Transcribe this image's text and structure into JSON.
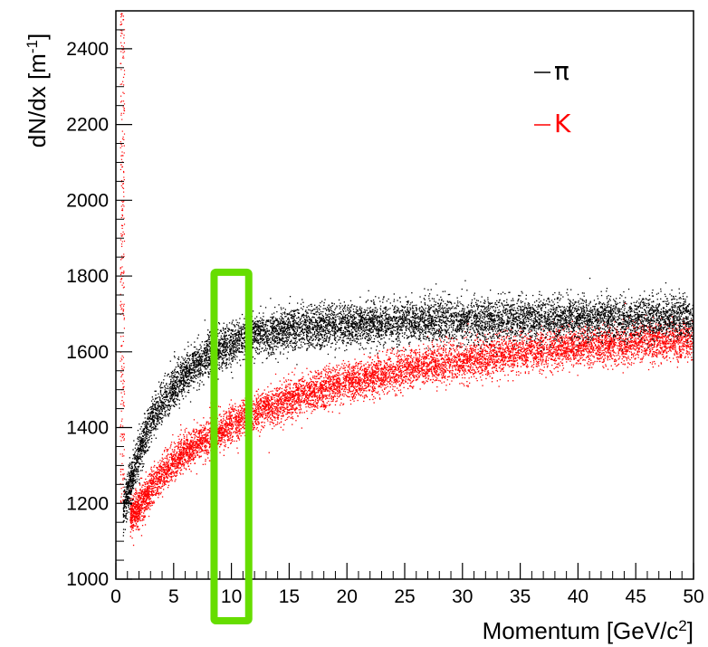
{
  "chart_data": {
    "type": "scatter",
    "title": "",
    "xlabel": "Momentum [GeV/c^2]",
    "ylabel": "dN/dx [m^-1]",
    "xlim": [
      0,
      50
    ],
    "ylim": [
      1000,
      2500
    ],
    "x_ticks": [
      0,
      5,
      10,
      15,
      20,
      25,
      30,
      35,
      40,
      45,
      50
    ],
    "y_ticks": [
      1000,
      1200,
      1400,
      1600,
      1800,
      2000,
      2200,
      2400
    ],
    "legend_position": "top-right",
    "grid": false,
    "series": [
      {
        "name": "π",
        "color": "#000000",
        "band_center": [
          [
            0.6,
            1185
          ],
          [
            1,
            1230
          ],
          [
            2,
            1340
          ],
          [
            3,
            1420
          ],
          [
            4,
            1470
          ],
          [
            5,
            1510
          ],
          [
            6,
            1545
          ],
          [
            7,
            1570
          ],
          [
            8,
            1595
          ],
          [
            10,
            1625
          ],
          [
            12,
            1645
          ],
          [
            15,
            1660
          ],
          [
            20,
            1672
          ],
          [
            25,
            1680
          ],
          [
            30,
            1685
          ],
          [
            35,
            1688
          ],
          [
            40,
            1690
          ],
          [
            45,
            1692
          ],
          [
            50,
            1693
          ]
        ],
        "band_halfwidth": 50
      },
      {
        "name": "K",
        "color": "#ff0000",
        "band_center": [
          [
            1.2,
            1170
          ],
          [
            2,
            1190
          ],
          [
            3,
            1240
          ],
          [
            4,
            1280
          ],
          [
            5,
            1310
          ],
          [
            6,
            1340
          ],
          [
            8,
            1375
          ],
          [
            10,
            1410
          ],
          [
            12,
            1440
          ],
          [
            15,
            1475
          ],
          [
            20,
            1520
          ],
          [
            25,
            1555
          ],
          [
            30,
            1580
          ],
          [
            35,
            1600
          ],
          [
            40,
            1615
          ],
          [
            45,
            1625
          ],
          [
            50,
            1632
          ]
        ],
        "band_halfwidth": 45
      }
    ],
    "highlight_box": {
      "color": "#66dd00",
      "x_range": [
        8.5,
        11.5
      ],
      "y_range": [
        890,
        1810
      ]
    }
  }
}
